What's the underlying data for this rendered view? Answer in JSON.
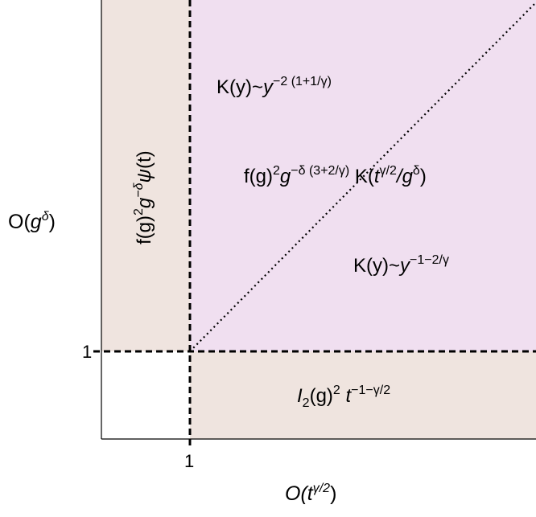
{
  "colors": {
    "upper_right_region": "#f0dff0",
    "band_regions": "#efe4df",
    "lower_left_region": "#ffffff",
    "lines": "#000000"
  },
  "axes": {
    "x_label_base": "O(",
    "x_label_var": "t",
    "x_label_exp": "γ/2",
    "x_label_close": ")",
    "x_tick": "1",
    "y_label_base": "O(",
    "y_label_var": "g",
    "y_label_exp": "δ",
    "y_label_close": ")",
    "y_tick": "1"
  },
  "regions": {
    "left_band": {
      "part1": "f(g)",
      "exp1": "2",
      "var": "g",
      "exp2": "−δ",
      "part2": "ψ",
      "part3": "(t)"
    },
    "top": {
      "part1": "K(y)~",
      "var": "y",
      "exp": "−2 (1+1/γ)"
    },
    "middle": {
      "part1": "f(g)",
      "exp1": "2",
      "var": "g",
      "exp2": "−δ (3+2/γ)",
      "part2": " K(",
      "var2": "t",
      "exp3": "γ/2",
      "slash": "/",
      "var3": "g",
      "exp4": "δ",
      "close": ")"
    },
    "lower": {
      "part1": "K(y)~",
      "var": "y",
      "exp": "−1−2/γ"
    },
    "bottom_band": {
      "var": "I",
      "sub": "2",
      "part1": "(g)",
      "exp1": "2",
      "var2": " t",
      "exp2": "−1−γ/2"
    }
  }
}
